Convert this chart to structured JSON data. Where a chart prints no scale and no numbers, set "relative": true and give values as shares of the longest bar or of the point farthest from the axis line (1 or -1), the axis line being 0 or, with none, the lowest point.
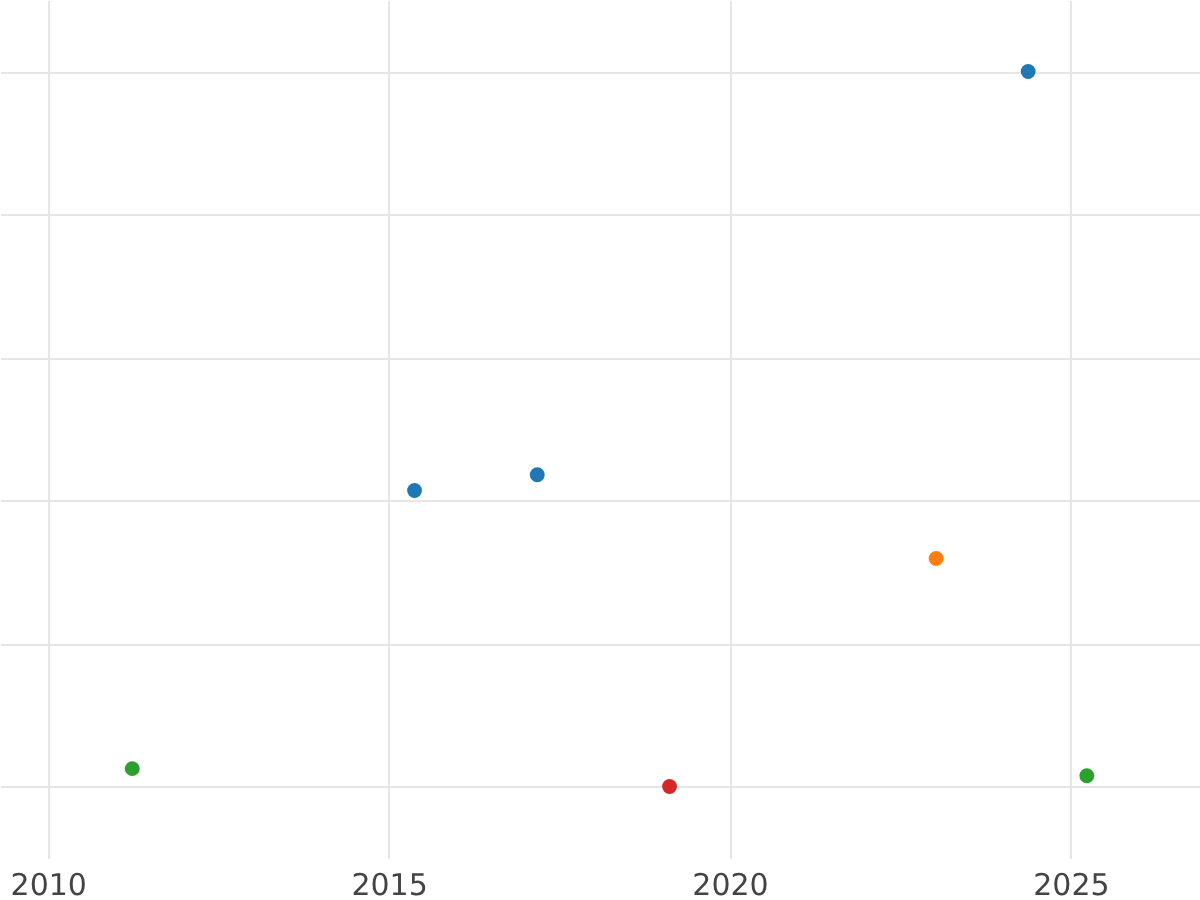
{
  "chart_data": {
    "type": "scatter",
    "relative": true,
    "x": [
      2011.24,
      2015.38,
      2017.18,
      2019.12,
      2023.03,
      2024.38,
      2025.24
    ],
    "values": [
      0.025,
      0.414,
      0.436,
      0,
      0.319,
      1,
      0.015
    ],
    "colors": [
      "#2ca02c",
      "#1f77b4",
      "#1f77b4",
      "#d62728",
      "#ff7f0e",
      "#1f77b4",
      "#2ca02c"
    ],
    "xlim": [
      2009.3,
      2026.9
    ],
    "xticks": [
      2010,
      2015,
      2020,
      2025
    ],
    "grid": true,
    "marker": "circle",
    "tick_labels": "x"
  }
}
